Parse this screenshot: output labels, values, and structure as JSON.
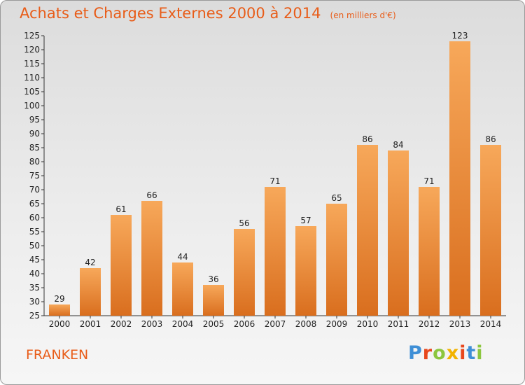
{
  "title": "Achats et Charges Externes 2000 à 2014",
  "unit_note": "(en milliers d'€)",
  "commune": "FRANKEN",
  "logo": {
    "text": "Proxiti",
    "letter_colors": [
      "#3f8fd6",
      "#e8471c",
      "#8cc63f",
      "#f2b300",
      "#e8471c",
      "#3f8fd6",
      "#8cc63f"
    ]
  },
  "colors": {
    "bar_light": "#f7a85a",
    "bar_dark": "#d96e1e",
    "title": "#e85c18"
  },
  "chart_data": {
    "type": "bar",
    "title": "Achats et Charges Externes 2000 à 2014",
    "xlabel": "",
    "ylabel": "",
    "categories": [
      "2000",
      "2001",
      "2002",
      "2003",
      "2004",
      "2005",
      "2006",
      "2007",
      "2008",
      "2009",
      "2010",
      "2011",
      "2012",
      "2013",
      "2014"
    ],
    "values": [
      29,
      42,
      61,
      66,
      44,
      36,
      56,
      71,
      57,
      65,
      86,
      84,
      71,
      123,
      86
    ],
    "ylim": [
      25,
      125
    ],
    "yticks": [
      25,
      30,
      35,
      40,
      45,
      50,
      55,
      60,
      65,
      70,
      75,
      80,
      85,
      90,
      95,
      100,
      105,
      110,
      115,
      120,
      125
    ],
    "grid": false,
    "legend": "none"
  }
}
